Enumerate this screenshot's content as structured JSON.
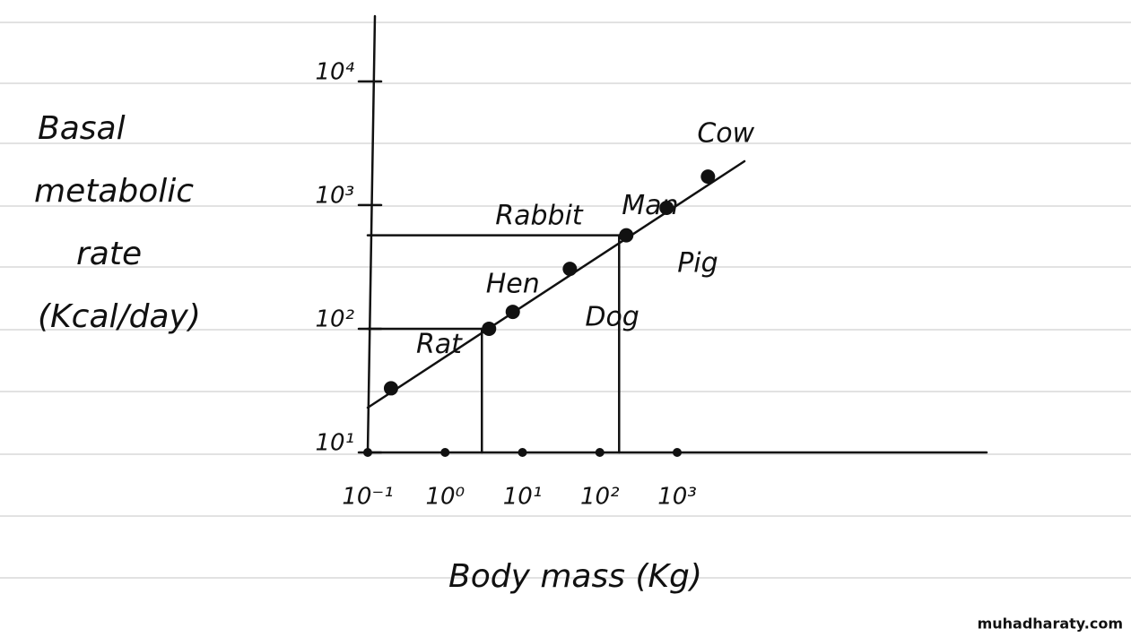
{
  "chart_data": {
    "type": "scatter",
    "y_label_lines": [
      "Basal",
      "metabolic",
      "rate",
      "(Kcal/day)"
    ],
    "x_label": "Body mass (Kg)",
    "watermark": "muhadharaty.com",
    "log_x": true,
    "log_y": true,
    "color": "#111111",
    "xlim": [
      0.1,
      10000000
    ],
    "ylim": [
      10,
      30000
    ],
    "xticks": [
      {
        "value": 0.1,
        "label": "10⁻¹"
      },
      {
        "value": 1,
        "label": "10⁰"
      },
      {
        "value": 10,
        "label": "10¹"
      },
      {
        "value": 100,
        "label": "10²"
      },
      {
        "value": 1000,
        "label": "10³"
      }
    ],
    "yticks": [
      {
        "value": 10,
        "label": "10¹"
      },
      {
        "value": 100,
        "label": "10²"
      },
      {
        "value": 1000,
        "label": "10³"
      },
      {
        "value": 10000,
        "label": "10⁴"
      }
    ],
    "points": [
      {
        "label": "Rat",
        "x": 0.2,
        "y": 33
      },
      {
        "label": "Rabbit",
        "x": 3.7,
        "y": 100
      },
      {
        "label": "Hen",
        "x": 7.5,
        "y": 137
      },
      {
        "label": "Dog",
        "x": 41,
        "y": 305
      },
      {
        "label": "Man",
        "x": 220,
        "y": 570
      },
      {
        "label": "Pig",
        "x": 730,
        "y": 950
      },
      {
        "label": "Cow",
        "x": 2500,
        "y": 1700
      }
    ]
  }
}
